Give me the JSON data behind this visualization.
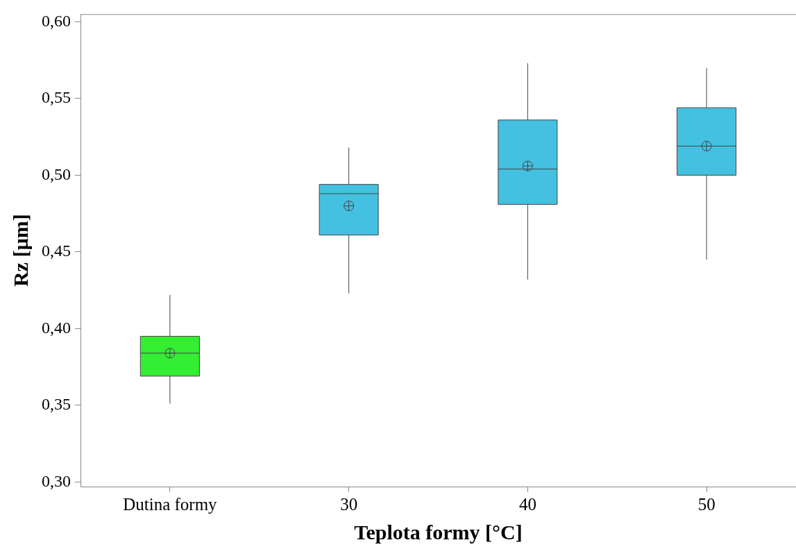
{
  "chart_data": {
    "type": "box",
    "xlabel": "Teplota formy [°C]",
    "ylabel": "Rz [µm]",
    "categories": [
      "Dutina formy",
      "30",
      "40",
      "50"
    ],
    "colors": [
      "#33ee33",
      "#44c0e0",
      "#44c0e0",
      "#44c0e0"
    ],
    "boxes": [
      {
        "low": 0.351,
        "q1": 0.369,
        "median": 0.384,
        "q3": 0.395,
        "high": 0.422,
        "mean": 0.384
      },
      {
        "low": 0.423,
        "q1": 0.461,
        "median": 0.488,
        "q3": 0.494,
        "high": 0.518,
        "mean": 0.48
      },
      {
        "low": 0.432,
        "q1": 0.481,
        "median": 0.504,
        "q3": 0.536,
        "high": 0.573,
        "mean": 0.506
      },
      {
        "low": 0.445,
        "q1": 0.5,
        "median": 0.519,
        "q3": 0.544,
        "high": 0.57,
        "mean": 0.519
      }
    ],
    "ylim": [
      0.297,
      0.605
    ],
    "yticks": [
      {
        "value": 0.3,
        "label": "0,30"
      },
      {
        "value": 0.35,
        "label": "0,35"
      },
      {
        "value": 0.4,
        "label": "0,40"
      },
      {
        "value": 0.45,
        "label": "0,45"
      },
      {
        "value": 0.5,
        "label": "0,50"
      },
      {
        "value": 0.55,
        "label": "0,55"
      },
      {
        "value": 0.6,
        "label": "0,60"
      }
    ],
    "grid": false,
    "legend": false
  }
}
